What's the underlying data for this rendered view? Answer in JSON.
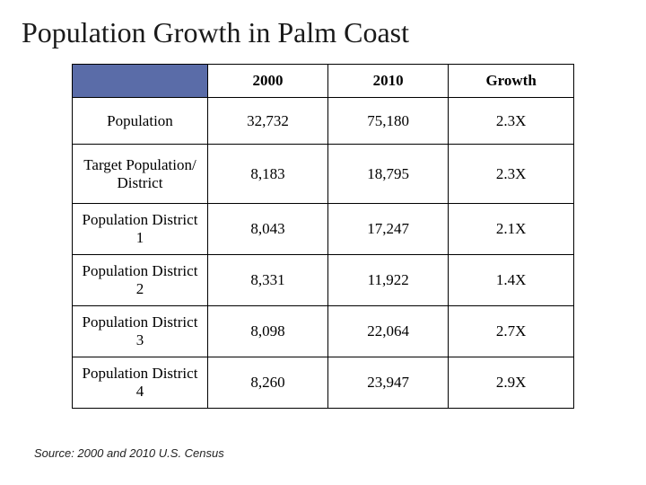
{
  "title": "Population Growth in Palm Coast",
  "table": {
    "type": "table",
    "columns": [
      "",
      "2000",
      "2010",
      "Growth"
    ],
    "rows": [
      {
        "label": "Population",
        "c2000": "32,732",
        "c2010": "75,180",
        "growth": "2.3X",
        "tall": false
      },
      {
        "label": "Target Population/ District",
        "c2000": "8,183",
        "c2010": "18,795",
        "growth": "2.3X",
        "tall": true
      },
      {
        "label": "Population District 1",
        "c2000": "8,043",
        "c2010": "17,247",
        "growth": "2.1X",
        "tall": false
      },
      {
        "label": "Population District 2",
        "c2000": "8,331",
        "c2010": "11,922",
        "growth": "1.4X",
        "tall": false
      },
      {
        "label": "Population District 3",
        "c2000": "8,098",
        "c2010": "22,064",
        "growth": "2.7X",
        "tall": false
      },
      {
        "label": "Population District 4",
        "c2000": "8,260",
        "c2010": "23,947",
        "growth": "2.9X",
        "tall": false
      }
    ],
    "header_bg": "#5a6ca8",
    "border_color": "#000000",
    "background_color": "#ffffff",
    "col_widths_pct": [
      27,
      24,
      24,
      25
    ],
    "header_fontsize": 17,
    "cell_fontsize": 17
  },
  "source": "Source:  2000 and 2010 U.S. Census",
  "title_fontsize": 32,
  "title_color": "#1a1a1a"
}
